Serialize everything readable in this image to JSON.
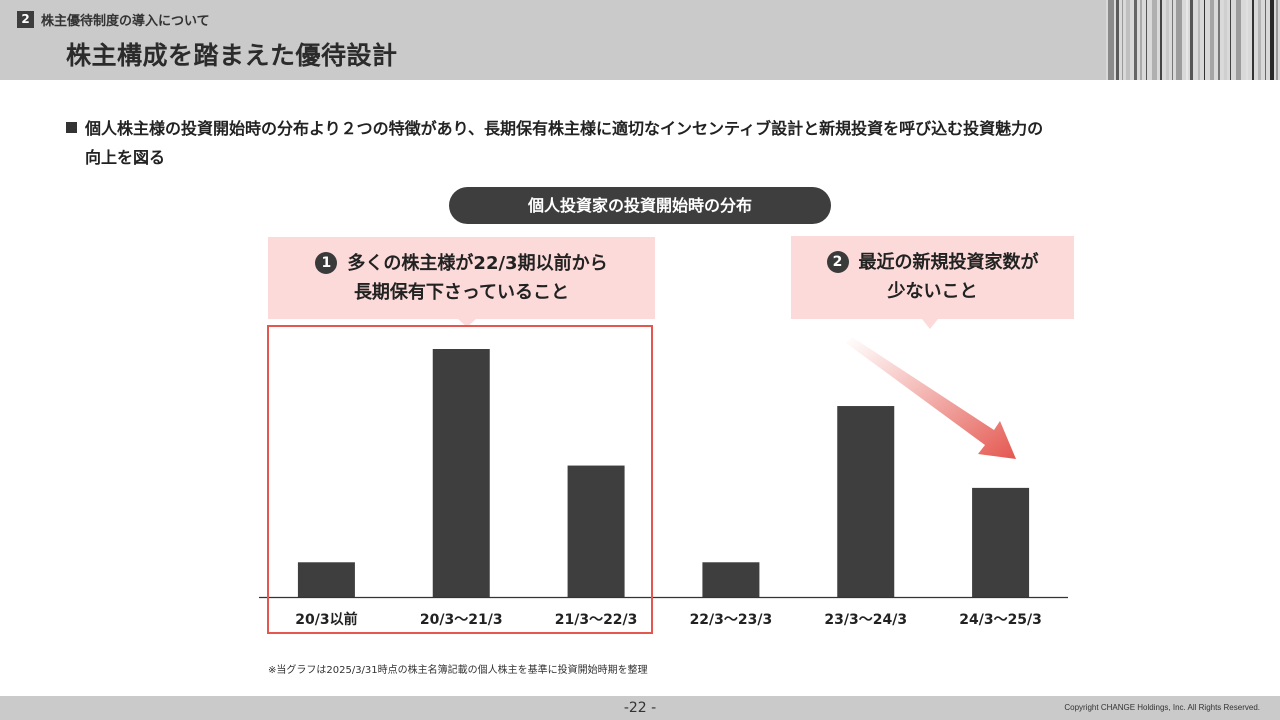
{
  "header": {
    "section_number": "2",
    "section_label": "株主優待制度の導入について",
    "title": "株主構成を踏まえた優待設計"
  },
  "bullet": {
    "line1": "個人株主様の投資開始時の分布より２つの特徴があり、長期保有株主様に適切なインセンティブ設計と新規投資を呼び込む投資魅力の",
    "line2": "向上を図る"
  },
  "chart_title": "個人投資家の投資開始時の分布",
  "callouts": [
    {
      "number": "1",
      "line1": "多くの株主様が22/3期以前から",
      "line2": "長期保有下さっていること"
    },
    {
      "number": "2",
      "line1": "最近の新規投資家数が",
      "line2": "少ないこと"
    }
  ],
  "chart_data": {
    "type": "bar",
    "title": "個人投資家の投資開始時の分布",
    "categories": [
      "20/3以前",
      "20/3～21/3",
      "21/3～22/3",
      "22/3～23/3",
      "23/3～24/3",
      "24/3～25/3"
    ],
    "values": [
      14,
      100,
      53,
      14,
      77,
      44
    ],
    "ylim": [
      0,
      100
    ],
    "xlabel": "",
    "ylabel": "",
    "grid": false,
    "bar_color": "#3e3e3e",
    "highlight_color": "#e4574f",
    "arrow_color": "#e4574f"
  },
  "footnote": "※当グラフは2025/3/31時点の株主名簿記載の個人株主を基準に投資開始時期を整理",
  "footer": {
    "page_number": "-22 -",
    "copyright": "Copyright CHANGE Holdings, Inc. All Rights Reserved."
  }
}
